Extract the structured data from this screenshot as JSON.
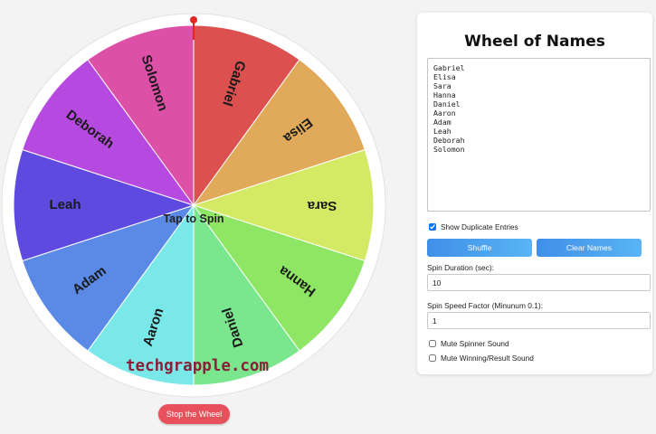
{
  "wheel": {
    "center_label": "Tap to Spin",
    "watermark": "techgrapple.com",
    "segments": [
      {
        "name": "Gabriel",
        "color": "#dc5050"
      },
      {
        "name": "Elisa",
        "color": "#e0aa5a"
      },
      {
        "name": "Sara",
        "color": "#d4ea64"
      },
      {
        "name": "Hanna",
        "color": "#8ee664"
      },
      {
        "name": "Daniel",
        "color": "#7ae68e"
      },
      {
        "name": "Aaron",
        "color": "#7ae8e8"
      },
      {
        "name": "Adam",
        "color": "#5a8ae6"
      },
      {
        "name": "Leah",
        "color": "#5f4ae0"
      },
      {
        "name": "Deborah",
        "color": "#b64ae0"
      },
      {
        "name": "Solomon",
        "color": "#dc50a8"
      }
    ],
    "pointer_color": "#e02828"
  },
  "stop_button": {
    "label": "Stop the Wheel",
    "color": "#e8505b"
  },
  "panel": {
    "title": "Wheel of Names",
    "names_text": "Gabriel\nElisa\nSara\nHanna\nDaniel\nAaron\nAdam\nLeah\nDeborah\nSolomon",
    "show_duplicates": {
      "label": "Show Duplicate Entries",
      "checked": true
    },
    "shuffle_label": "Shuffle",
    "clear_label": "Clear Names",
    "spin_duration": {
      "label": "Spin Duration (sec):",
      "value": "10"
    },
    "spin_speed": {
      "label": "Spin Speed Factor (Minunum 0.1):",
      "value": "1"
    },
    "mute_spinner": {
      "label": "Mute Spinner Sound",
      "checked": false
    },
    "mute_winning": {
      "label": "Mute Winning/Result Sound",
      "checked": false
    }
  }
}
